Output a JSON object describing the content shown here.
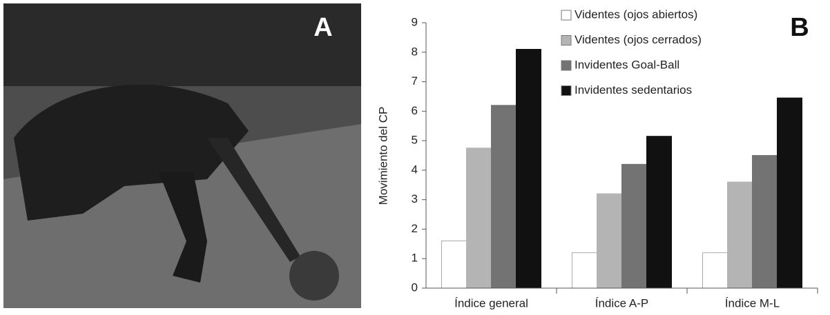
{
  "panel_a": {
    "label": "A"
  },
  "chart_data": {
    "type": "bar",
    "panel_label": "B",
    "y_label": "Movimiento del CP",
    "categories": [
      "Índice general",
      "Índice A-P",
      "Índice M-L"
    ],
    "series": [
      {
        "name": "Videntes (ojos abiertos)",
        "color": "#ffffff",
        "values": [
          1.6,
          1.2,
          1.2
        ]
      },
      {
        "name": "Videntes (ojos cerrados)",
        "color": "#b4b4b4",
        "values": [
          4.75,
          3.2,
          3.6
        ]
      },
      {
        "name": "Invidentes Goal-Ball",
        "color": "#737373",
        "values": [
          6.2,
          4.2,
          4.5
        ]
      },
      {
        "name": "Invidentes sedentarios",
        "color": "#111111",
        "values": [
          8.1,
          5.15,
          6.45
        ]
      }
    ],
    "ylim": [
      0,
      9
    ],
    "yticks": [
      0,
      1,
      2,
      3,
      4,
      5,
      6,
      7,
      8,
      9
    ]
  }
}
